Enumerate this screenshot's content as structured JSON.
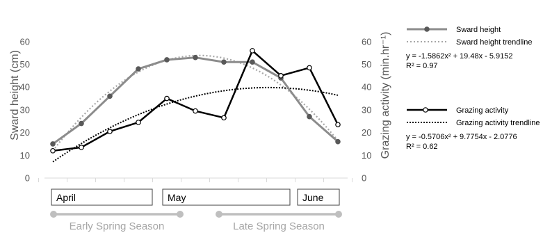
{
  "chart_data": {
    "type": "line",
    "x": [
      1,
      2,
      3,
      4,
      5,
      6,
      7,
      8,
      9,
      10,
      11
    ],
    "ylim": [
      0,
      60
    ],
    "y2lim": [
      0,
      60
    ],
    "yticks": [
      0,
      10,
      20,
      30,
      40,
      50,
      60
    ],
    "ylabel": "Sward height (cm)",
    "y2label": "Grazing activity (min.hr⁻¹)",
    "grid": false,
    "legend_position": "right",
    "series": [
      {
        "name": "Sward height",
        "axis": "left",
        "color": "#8c8c8c",
        "values": [
          15,
          24,
          36,
          48,
          52,
          53,
          51,
          51,
          44,
          27,
          16
        ]
      },
      {
        "name": "Grazing activity",
        "axis": "right",
        "color": "#000000",
        "values": [
          12,
          13.5,
          20.5,
          24.5,
          35,
          29.5,
          26.5,
          56,
          45,
          48.5,
          23.5
        ]
      }
    ],
    "trendlines": [
      {
        "name": "Sward height trendline",
        "color": "#a6a6a6",
        "coefficients": [
          -1.5862,
          19.48,
          -5.9152
        ],
        "equation": "y = -1.5862x² + 19.48x - 5.9152",
        "r2": "R² = 0.97"
      },
      {
        "name": "Grazing activity trendline",
        "color": "#000000",
        "coefficients": [
          -0.5706,
          9.7754,
          -2.0776
        ],
        "equation": "y = -0.5706x² + 9.7754x - 2.0776",
        "r2": "R² = 0.62"
      }
    ],
    "months": [
      {
        "label": "April",
        "from": 1,
        "to": 4
      },
      {
        "label": "May",
        "from": 5,
        "to": 8
      },
      {
        "label": "June",
        "from": 9,
        "to": 11
      }
    ],
    "seasons": [
      {
        "label": "Early Spring Season",
        "from": 1,
        "to": 5
      },
      {
        "label": "Late Spring Season",
        "from": 7,
        "to": 11
      }
    ]
  }
}
